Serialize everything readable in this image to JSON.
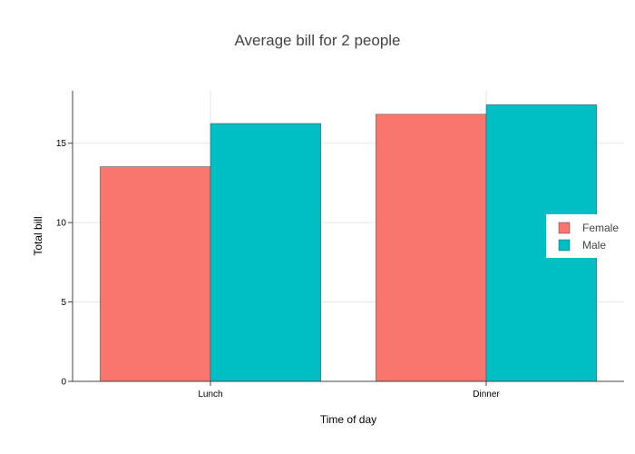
{
  "chart_data": {
    "type": "bar",
    "title": "Average bill for 2 people",
    "xlabel": "Time of day",
    "ylabel": "Total bill",
    "categories": [
      "Lunch",
      "Dinner"
    ],
    "series": [
      {
        "name": "Female",
        "values": [
          13.52,
          16.82
        ],
        "color": "#F8766D"
      },
      {
        "name": "Male",
        "values": [
          16.24,
          17.42
        ],
        "color": "#00BFC4"
      }
    ],
    "ylim": [
      0,
      18.3
    ],
    "yticks": [
      0,
      5,
      10,
      15
    ],
    "grid": true,
    "legend_position": "right"
  }
}
